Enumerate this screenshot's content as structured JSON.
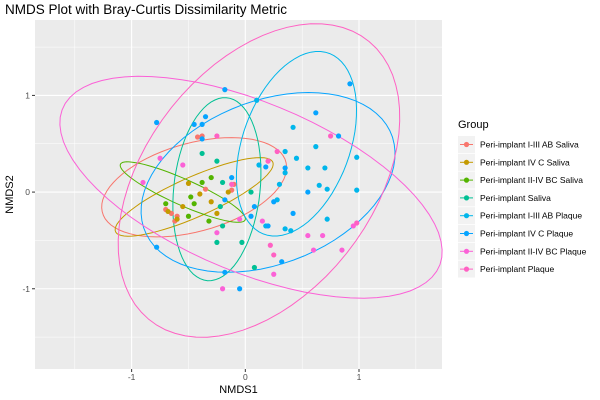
{
  "chart_data": {
    "type": "scatter",
    "title": "NMDS Plot with Bray-Curtis Dissimilarity Metric",
    "xlabel": "NMDS1",
    "ylabel": "NMDS2",
    "xlim": [
      -1.85,
      1.73
    ],
    "ylim": [
      -1.83,
      1.78
    ],
    "x_ticks": [
      -1,
      0,
      1
    ],
    "y_ticks": [
      -1,
      0,
      1
    ],
    "x_tick_labels": [
      "-1",
      "0",
      "1"
    ],
    "y_tick_labels": [
      "-1",
      "0",
      "1"
    ],
    "grid": true,
    "legend_position": "right",
    "legend_title": "Group",
    "series": [
      {
        "name": "Peri-implant I-III AB Saliva",
        "color": "#F8766D",
        "points": [
          [
            -0.42,
            0.57
          ],
          [
            -0.38,
            0.58
          ],
          [
            -0.12,
            0.02
          ],
          [
            -0.7,
            -0.18
          ],
          [
            -0.65,
            -0.22
          ],
          [
            -0.62,
            -0.3
          ],
          [
            -0.6,
            -0.25
          ],
          [
            -0.35,
            0.03
          ],
          [
            -0.1,
            0.08
          ]
        ],
        "ellipse": {
          "cx": -0.45,
          "cy": 0.05,
          "rx": 0.85,
          "ry": 0.45,
          "angle_deg": 20
        }
      },
      {
        "name": "Peri-implant IV C Saliva",
        "color": "#C49A00",
        "points": [
          [
            -0.5,
            0.09
          ],
          [
            -0.4,
            -0.02
          ],
          [
            -0.15,
            0.0
          ],
          [
            -0.3,
            -0.1
          ],
          [
            -0.68,
            -0.2
          ],
          [
            -0.6,
            -0.28
          ],
          [
            -0.25,
            -0.22
          ],
          [
            -0.55,
            -0.15
          ]
        ],
        "ellipse": {
          "cx": -0.45,
          "cy": -0.05,
          "rx": 0.78,
          "ry": 0.2,
          "angle_deg": 28
        }
      },
      {
        "name": "Peri-implant II-IV BC Saliva",
        "color": "#53B400",
        "points": [
          [
            -0.7,
            -0.12
          ],
          [
            -0.48,
            -0.05
          ],
          [
            -0.45,
            -0.12
          ],
          [
            -0.3,
            0.15
          ],
          [
            -0.32,
            -0.3
          ],
          [
            -0.5,
            -0.25
          ],
          [
            -0.38,
            0.1
          ]
        ],
        "ellipse": {
          "cx": -0.55,
          "cy": 0.0,
          "rx": 0.62,
          "ry": 0.13,
          "angle_deg": -28
        }
      },
      {
        "name": "Peri-implant Saliva",
        "color": "#00C094",
        "points": [
          [
            -0.25,
            0.32
          ],
          [
            -0.2,
            0.1
          ],
          [
            -0.22,
            -0.15
          ],
          [
            -0.2,
            -0.35
          ],
          [
            -0.25,
            -0.52
          ],
          [
            -0.03,
            -0.52
          ],
          [
            0.08,
            -0.78
          ],
          [
            -0.38,
            0.4
          ],
          [
            0.05,
            0.0
          ]
        ],
        "ellipse": {
          "cx": -0.25,
          "cy": 0.03,
          "rx": 0.95,
          "ry": 0.38,
          "angle_deg": 85
        }
      },
      {
        "name": "Peri-implant I-III AB Plaque",
        "color": "#00B6EB",
        "points": [
          [
            0.1,
            0.95
          ],
          [
            0.35,
            0.42
          ],
          [
            0.45,
            0.35
          ],
          [
            0.55,
            0.25
          ],
          [
            0.7,
            0.25
          ],
          [
            0.65,
            0.07
          ],
          [
            0.72,
            0.03
          ],
          [
            0.98,
            0.02
          ],
          [
            0.72,
            -0.28
          ],
          [
            0.4,
            -0.4
          ],
          [
            0.18,
            -0.35
          ],
          [
            0.28,
            -0.08
          ],
          [
            0.12,
            0.28
          ],
          [
            0.3,
            0.08
          ],
          [
            0.98,
            0.36
          ],
          [
            0.62,
            0.47
          ],
          [
            0.42,
            0.67
          ],
          [
            0.35,
            0.2
          ],
          [
            0.35,
            -0.38
          ]
        ],
        "ellipse": {
          "cx": 0.45,
          "cy": 0.5,
          "rx": 0.98,
          "ry": 0.48,
          "angle_deg": 75
        }
      },
      {
        "name": "Peri-implant IV C Plaque",
        "color": "#06A4FF",
        "points": [
          [
            -0.78,
            0.72
          ],
          [
            -0.35,
            0.78
          ],
          [
            -0.45,
            0.7
          ],
          [
            -0.18,
            1.06
          ],
          [
            0.18,
            0.26
          ],
          [
            0.08,
            -0.15
          ],
          [
            -0.12,
            0.15
          ],
          [
            -0.18,
            -0.08
          ],
          [
            0.25,
            -0.1
          ],
          [
            -0.38,
            0.55
          ],
          [
            -0.18,
            -0.83
          ],
          [
            -0.05,
            -1.0
          ],
          [
            0.32,
            -0.72
          ],
          [
            0.42,
            -0.22
          ],
          [
            0.62,
            0.82
          ],
          [
            0.82,
            0.58
          ],
          [
            0.92,
            1.12
          ],
          [
            0.55,
            0.0
          ],
          [
            -0.78,
            -0.57
          ],
          [
            -0.38,
            0.7
          ],
          [
            0.35,
            0.25
          ],
          [
            0.05,
            -0.25
          ],
          [
            0.2,
            -0.35
          ]
        ],
        "ellipse": {
          "cx": 0.2,
          "cy": 0.1,
          "rx": 1.2,
          "ry": 0.82,
          "angle_deg": 30
        }
      },
      {
        "name": "Peri-implant II-IV BC Plaque",
        "color": "#FB61D7",
        "points": [
          [
            -0.9,
            0.1
          ],
          [
            -0.55,
            0.28
          ],
          [
            -0.75,
            0.35
          ],
          [
            -0.25,
            -0.42
          ],
          [
            -0.2,
            -1.0
          ],
          [
            -0.05,
            -0.28
          ],
          [
            0.15,
            -0.3
          ],
          [
            0.25,
            -0.85
          ],
          [
            0.6,
            -0.6
          ],
          [
            0.85,
            -0.6
          ],
          [
            0.95,
            -0.35
          ],
          [
            0.55,
            -0.45
          ],
          [
            0.68,
            -0.45
          ]
        ],
        "ellipse": {
          "cx": 0.05,
          "cy": 0.05,
          "rx": 1.85,
          "ry": 0.85,
          "angle_deg": -28
        }
      },
      {
        "name": "Peri-implant Plaque",
        "color": "#FF61C3",
        "points": [
          [
            -0.25,
            0.58
          ],
          [
            0.2,
            0.32
          ],
          [
            0.22,
            -0.55
          ],
          [
            0.25,
            -0.65
          ],
          [
            0.98,
            -0.32
          ],
          [
            0.75,
            0.58
          ],
          [
            0.28,
            0.42
          ],
          [
            -0.12,
            0.08
          ]
        ],
        "ellipse": {
          "cx": 0.12,
          "cy": 0.12,
          "rx": 1.75,
          "ry": 1.05,
          "angle_deg": 62
        }
      }
    ]
  }
}
